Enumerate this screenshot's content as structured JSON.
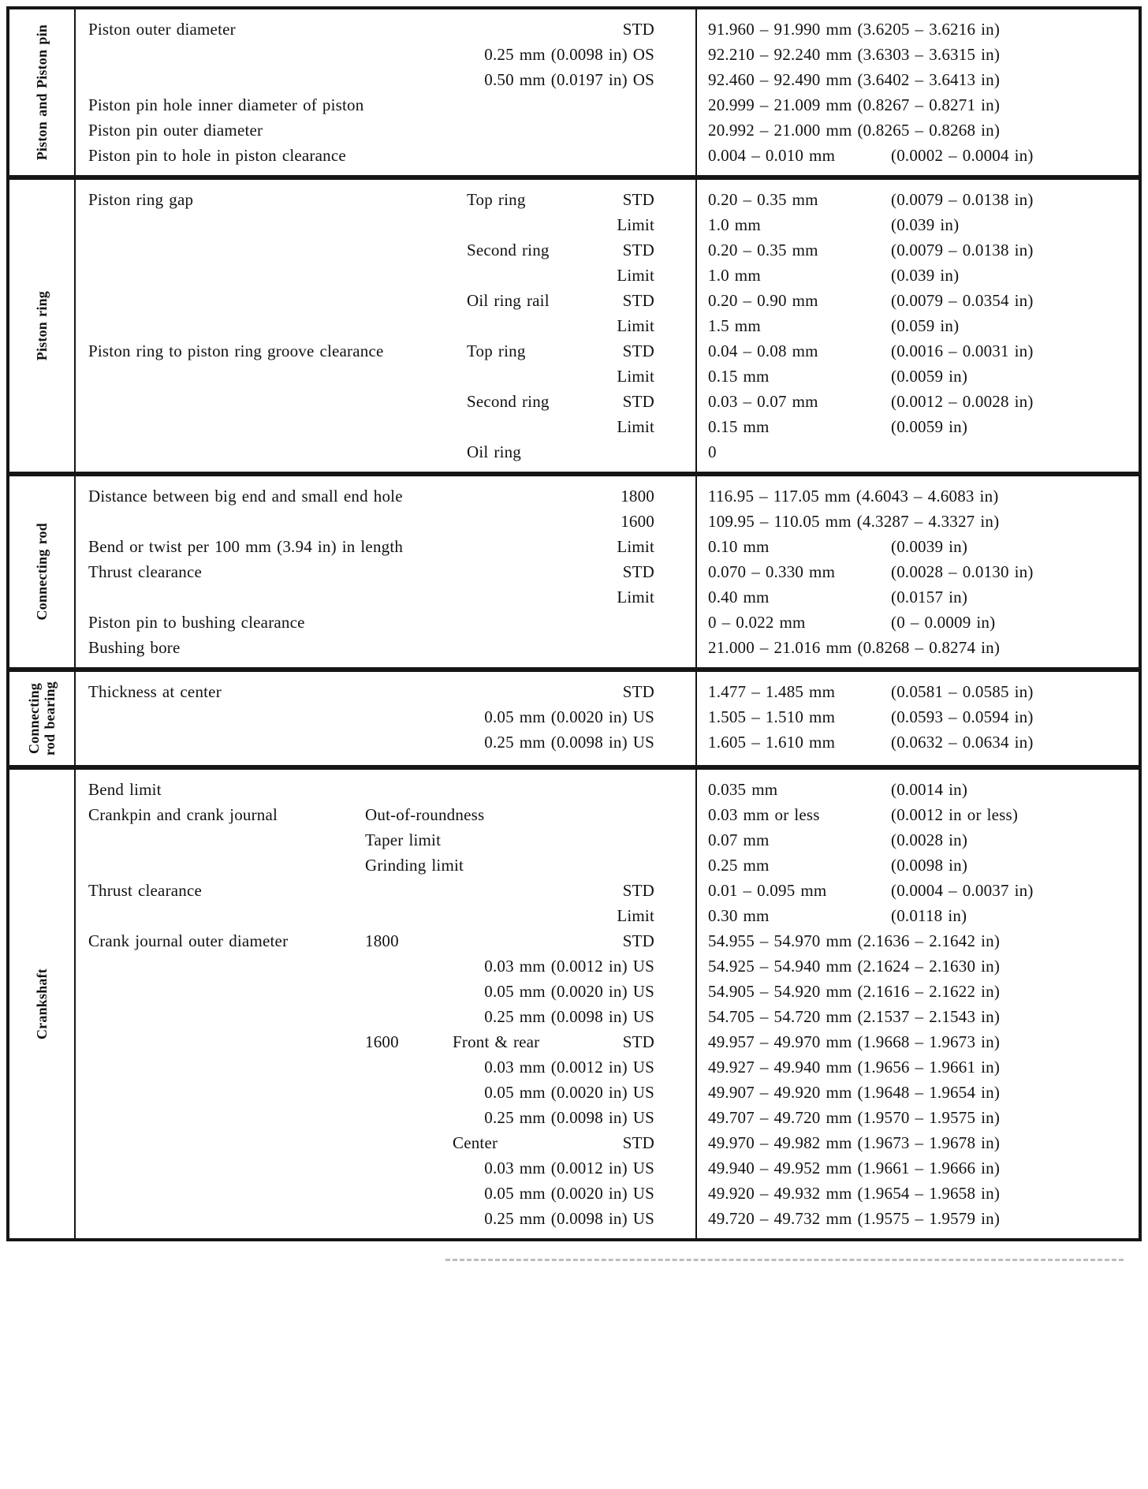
{
  "page": {
    "background": "#ffffff",
    "line_color": "#161616"
  },
  "table": {
    "name": "engine-specifications-table",
    "sections": [
      {
        "label": "Piston and Piston pin",
        "rows": [
          {
            "desc": "Piston outer diameter",
            "qual": "STD",
            "v1": "91.960 – 91.990 mm (3.6205 – 3.6216 in)"
          },
          {
            "qual": "0.25 mm (0.0098 in) OS",
            "v1": "92.210 – 92.240 mm (3.6303 – 3.6315 in)"
          },
          {
            "qual": "0.50 mm (0.0197 in) OS",
            "v1": "92.460 – 92.490 mm (3.6402 – 3.6413 in)"
          },
          {
            "desc": "Piston pin hole inner diameter of piston",
            "v1": "20.999 – 21.009 mm (0.8267 – 0.8271 in)"
          },
          {
            "desc": "Piston pin outer diameter",
            "v1": "20.992 – 21.000 mm (0.8265 – 0.8268 in)"
          },
          {
            "desc": "Piston pin to hole in piston clearance",
            "v1": "0.004 – 0.010 mm",
            "v2": "(0.0002 – 0.0004 in)"
          }
        ]
      },
      {
        "label": "Piston ring",
        "rows": [
          {
            "desc": "Piston ring gap",
            "sub": "Top ring",
            "qual": "STD",
            "v1": "0.20 – 0.35 mm",
            "v2": "(0.0079 – 0.0138 in)"
          },
          {
            "qual": "Limit",
            "v1": "1.0 mm",
            "v2": "(0.039 in)"
          },
          {
            "sub": "Second ring",
            "qual": "STD",
            "v1": "0.20 – 0.35 mm",
            "v2": "(0.0079 – 0.0138 in)"
          },
          {
            "qual": "Limit",
            "v1": "1.0 mm",
            "v2": "(0.039 in)"
          },
          {
            "sub": "Oil ring rail",
            "qual": "STD",
            "v1": "0.20 – 0.90 mm",
            "v2": "(0.0079 – 0.0354 in)"
          },
          {
            "qual": "Limit",
            "v1": "1.5 mm",
            "v2": "(0.059 in)"
          },
          {
            "desc": "Piston ring to piston ring groove clearance",
            "sub": "Top ring",
            "qual": "STD",
            "v1": "0.04 – 0.08 mm",
            "v2": "(0.0016 – 0.0031 in)"
          },
          {
            "qual": "Limit",
            "v1": "0.15 mm",
            "v2": "(0.0059 in)"
          },
          {
            "sub": "Second ring",
            "qual": "STD",
            "v1": "0.03 – 0.07 mm",
            "v2": "(0.0012 – 0.0028 in)"
          },
          {
            "qual": "Limit",
            "v1": "0.15 mm",
            "v2": "(0.0059 in)"
          },
          {
            "sub": "Oil ring",
            "v1": "0"
          }
        ]
      },
      {
        "label": "Connecting rod",
        "rows": [
          {
            "desc": "Distance between big end and small end hole",
            "qual": "1800",
            "v1": "116.95 – 117.05 mm (4.6043 – 4.6083 in)"
          },
          {
            "qual": "1600",
            "v1": "109.95 – 110.05 mm (4.3287 – 4.3327 in)"
          },
          {
            "desc": "Bend or twist per 100 mm (3.94 in) in length",
            "qual": "Limit",
            "v1": "0.10 mm",
            "v2": "(0.0039 in)"
          },
          {
            "desc": "Thrust clearance",
            "qual": "STD",
            "v1": "0.070 – 0.330 mm",
            "v2": "(0.0028 – 0.0130 in)"
          },
          {
            "qual": "Limit",
            "v1": "0.40 mm",
            "v2": "(0.0157 in)"
          },
          {
            "desc": "Piston pin to bushing clearance",
            "v1": "0 – 0.022 mm",
            "v2": "(0 – 0.0009 in)"
          },
          {
            "desc": "Bushing bore",
            "v1": "21.000 – 21.016 mm (0.8268 – 0.8274 in)"
          }
        ]
      },
      {
        "label": "Connecting rod bearing",
        "rows": [
          {
            "desc": "Thickness at center",
            "qual": "STD",
            "v1": "1.477 – 1.485 mm",
            "v2": "(0.0581 – 0.0585 in)"
          },
          {
            "qual": "0.05 mm (0.0020 in) US",
            "v1": "1.505 – 1.510 mm",
            "v2": "(0.0593 – 0.0594 in)"
          },
          {
            "qual": "0.25 mm (0.0098 in) US",
            "v1": "1.605 – 1.610 mm",
            "v2": "(0.0632 – 0.0634 in)"
          }
        ]
      },
      {
        "label": "Crankshaft",
        "rows": [
          {
            "desc": "Bend limit",
            "v1": "0.035 mm",
            "v2": "(0.0014 in)"
          },
          {
            "desc": "Crankpin and crank journal",
            "sub": "Out-of-roundness",
            "v1": "0.03 mm or less",
            "v2": "(0.0012 in or less)"
          },
          {
            "sub": "Taper limit",
            "v1": "0.07 mm",
            "v2": "(0.0028 in)"
          },
          {
            "sub": "Grinding limit",
            "v1": "0.25 mm",
            "v2": "(0.0098 in)"
          },
          {
            "desc": "Thrust clearance",
            "qual": "STD",
            "v1": "0.01 – 0.095 mm",
            "v2": "(0.0004 – 0.0037 in)"
          },
          {
            "qual": "Limit",
            "v1": "0.30 mm",
            "v2": "(0.0118 in)"
          },
          {
            "desc": "Crank journal outer diameter",
            "sub": "1800",
            "qual": "STD",
            "v1": "54.955 – 54.970 mm (2.1636 – 2.1642 in)"
          },
          {
            "qual": "0.03 mm (0.0012 in) US",
            "v1": "54.925 – 54.940 mm (2.1624 – 2.1630 in)"
          },
          {
            "qual": "0.05 mm (0.0020 in) US",
            "v1": "54.905 – 54.920 mm (2.1616 – 2.1622 in)"
          },
          {
            "qual": "0.25 mm (0.0098 in) US",
            "v1": "54.705 – 54.720 mm (2.1537 – 2.1543 in)"
          },
          {
            "sub": "1600",
            "sub2": "Front & rear",
            "qual": "STD",
            "v1": "49.957 – 49.970 mm (1.9668 – 1.9673 in)"
          },
          {
            "qual": "0.03 mm (0.0012 in) US",
            "v1": "49.927 – 49.940 mm (1.9656 – 1.9661 in)"
          },
          {
            "qual": "0.05 mm (0.0020 in) US",
            "v1": "49.907 – 49.920 mm (1.9648 – 1.9654 in)"
          },
          {
            "qual": "0.25 mm (0.0098 in) US",
            "v1": "49.707 – 49.720 mm (1.9570 – 1.9575 in)"
          },
          {
            "sub2": "Center",
            "qual": "STD",
            "v1": "49.970 – 49.982 mm (1.9673 – 1.9678 in)"
          },
          {
            "qual": "0.03 mm (0.0012 in) US",
            "v1": "49.940 – 49.952 mm (1.9661 – 1.9666 in)"
          },
          {
            "qual": "0.05 mm (0.0020 in) US",
            "v1": "49.920 – 49.932 mm (1.9654 – 1.9658 in)"
          },
          {
            "qual": "0.25 mm (0.0098 in) US",
            "v1": "49.720 – 49.732 mm (1.9575 – 1.9579 in)"
          }
        ]
      }
    ]
  }
}
